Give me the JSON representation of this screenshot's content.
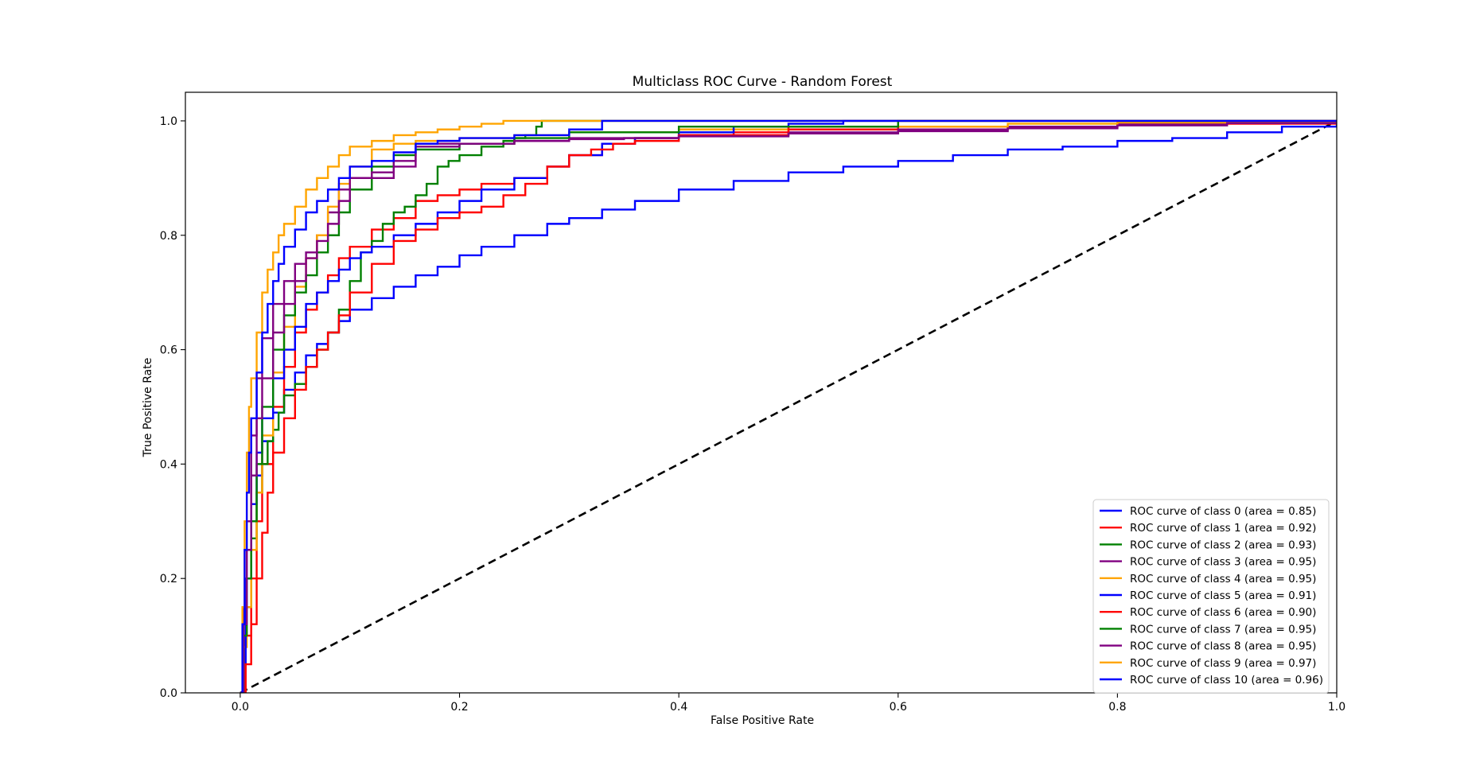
{
  "chart_data": {
    "type": "line",
    "title": "Multiclass ROC Curve - Random Forest",
    "xlabel": "False Positive Rate",
    "ylabel": "True Positive Rate",
    "xlim": [
      -0.05,
      1.0
    ],
    "ylim": [
      0.0,
      1.05
    ],
    "xticks": [
      "0.0",
      "0.2",
      "0.4",
      "0.6",
      "0.8",
      "1.0"
    ],
    "yticks": [
      "0.0",
      "0.2",
      "0.4",
      "0.6",
      "0.8",
      "1.0"
    ],
    "xtick_values": [
      0.0,
      0.2,
      0.4,
      0.6,
      0.8,
      1.0
    ],
    "ytick_values": [
      0.0,
      0.2,
      0.4,
      0.6,
      0.8,
      1.0
    ],
    "grid": false,
    "legend_position": "lower-right",
    "series": [
      {
        "name": "ROC curve of class 0 (area = 0.85)",
        "color": "#0000ff",
        "x": [
          0.0,
          0.003,
          0.006,
          0.01,
          0.015,
          0.02,
          0.03,
          0.04,
          0.05,
          0.06,
          0.07,
          0.08,
          0.09,
          0.1,
          0.12,
          0.14,
          0.16,
          0.18,
          0.2,
          0.22,
          0.25,
          0.28,
          0.3,
          0.33,
          0.36,
          0.4,
          0.45,
          0.5,
          0.55,
          0.6,
          0.65,
          0.7,
          0.75,
          0.8,
          0.85,
          0.9,
          0.95,
          1.0
        ],
        "y": [
          0.0,
          0.1,
          0.2,
          0.3,
          0.38,
          0.44,
          0.49,
          0.53,
          0.56,
          0.59,
          0.61,
          0.63,
          0.65,
          0.67,
          0.69,
          0.71,
          0.73,
          0.745,
          0.765,
          0.78,
          0.8,
          0.82,
          0.83,
          0.845,
          0.86,
          0.88,
          0.895,
          0.91,
          0.92,
          0.93,
          0.94,
          0.95,
          0.955,
          0.965,
          0.97,
          0.98,
          0.99,
          1.0
        ]
      },
      {
        "name": "ROC curve of class 1 (area = 0.92)",
        "color": "#ff0000",
        "x": [
          0.0,
          0.005,
          0.01,
          0.015,
          0.02,
          0.03,
          0.04,
          0.05,
          0.06,
          0.07,
          0.08,
          0.09,
          0.1,
          0.12,
          0.14,
          0.16,
          0.18,
          0.2,
          0.22,
          0.25,
          0.28,
          0.3,
          0.33,
          0.36,
          0.4,
          0.45,
          0.5,
          0.6,
          0.8,
          1.0
        ],
        "y": [
          0.0,
          0.1,
          0.2,
          0.3,
          0.4,
          0.5,
          0.57,
          0.63,
          0.67,
          0.7,
          0.73,
          0.76,
          0.78,
          0.81,
          0.83,
          0.86,
          0.87,
          0.88,
          0.89,
          0.9,
          0.92,
          0.94,
          0.96,
          0.97,
          0.975,
          0.98,
          0.985,
          0.99,
          0.995,
          1.0
        ]
      },
      {
        "name": "ROC curve of class 2 (area = 0.93)",
        "color": "#008000",
        "x": [
          0.0,
          0.005,
          0.01,
          0.015,
          0.02,
          0.025,
          0.03,
          0.035,
          0.04,
          0.05,
          0.06,
          0.07,
          0.08,
          0.09,
          0.1,
          0.11,
          0.12,
          0.13,
          0.14,
          0.15,
          0.16,
          0.17,
          0.18,
          0.19,
          0.2,
          0.22,
          0.24,
          0.25,
          0.26,
          0.27,
          0.275,
          0.3,
          0.4,
          0.6,
          1.0
        ],
        "y": [
          0.0,
          0.15,
          0.27,
          0.35,
          0.4,
          0.44,
          0.46,
          0.49,
          0.52,
          0.54,
          0.57,
          0.6,
          0.63,
          0.67,
          0.72,
          0.77,
          0.79,
          0.82,
          0.84,
          0.85,
          0.87,
          0.89,
          0.92,
          0.93,
          0.94,
          0.955,
          0.965,
          0.97,
          0.975,
          0.99,
          1.0,
          1.0,
          1.0,
          1.0,
          1.0
        ]
      },
      {
        "name": "ROC curve of class 3 (area = 0.95)",
        "color": "#800080",
        "x": [
          0.0,
          0.003,
          0.006,
          0.01,
          0.015,
          0.02,
          0.03,
          0.04,
          0.05,
          0.06,
          0.07,
          0.08,
          0.09,
          0.1,
          0.12,
          0.14,
          0.16,
          0.2,
          0.25,
          0.3,
          0.35,
          0.4,
          0.5,
          0.6,
          0.7,
          0.8,
          0.9,
          1.0
        ],
        "y": [
          0.0,
          0.15,
          0.3,
          0.45,
          0.55,
          0.62,
          0.68,
          0.72,
          0.75,
          0.77,
          0.8,
          0.84,
          0.88,
          0.9,
          0.9,
          0.92,
          0.96,
          0.96,
          0.965,
          0.97,
          0.97,
          0.975,
          0.98,
          0.985,
          0.99,
          0.995,
          0.998,
          1.0
        ]
      },
      {
        "name": "ROC curve of class 4 (area = 0.95)",
        "color": "#ffa500",
        "x": [
          0.0,
          0.003,
          0.006,
          0.01,
          0.015,
          0.02,
          0.03,
          0.04,
          0.05,
          0.06,
          0.07,
          0.08,
          0.09,
          0.1,
          0.12,
          0.14,
          0.16,
          0.2,
          0.25,
          0.3,
          0.35,
          0.4,
          0.5,
          0.6,
          0.7,
          0.8,
          0.9,
          1.0
        ],
        "y": [
          0.0,
          0.08,
          0.15,
          0.25,
          0.35,
          0.45,
          0.56,
          0.64,
          0.71,
          0.76,
          0.8,
          0.85,
          0.89,
          0.92,
          0.95,
          0.96,
          0.965,
          0.97,
          0.975,
          0.98,
          0.98,
          0.985,
          0.99,
          0.99,
          0.995,
          0.997,
          0.999,
          1.0
        ]
      },
      {
        "name": "ROC curve of class 5 (area = 0.91)",
        "color": "#0000ff",
        "x": [
          0.0,
          0.005,
          0.01,
          0.015,
          0.02,
          0.03,
          0.04,
          0.05,
          0.06,
          0.07,
          0.08,
          0.09,
          0.1,
          0.11,
          0.12,
          0.14,
          0.16,
          0.18,
          0.2,
          0.22,
          0.25,
          0.28,
          0.3,
          0.33,
          0.36,
          0.4,
          0.45,
          0.5,
          0.55,
          1.0
        ],
        "y": [
          0.0,
          0.2,
          0.33,
          0.42,
          0.48,
          0.55,
          0.6,
          0.64,
          0.68,
          0.7,
          0.72,
          0.74,
          0.76,
          0.77,
          0.78,
          0.8,
          0.82,
          0.84,
          0.86,
          0.88,
          0.9,
          0.92,
          0.94,
          0.96,
          0.97,
          0.98,
          0.99,
          0.995,
          1.0,
          1.0
        ]
      },
      {
        "name": "ROC curve of class 6 (area = 0.90)",
        "color": "#ff0000",
        "x": [
          0.0,
          0.005,
          0.01,
          0.015,
          0.02,
          0.025,
          0.03,
          0.04,
          0.05,
          0.06,
          0.07,
          0.08,
          0.09,
          0.1,
          0.12,
          0.14,
          0.16,
          0.18,
          0.2,
          0.22,
          0.24,
          0.26,
          0.28,
          0.3,
          0.32,
          0.34,
          0.36,
          0.4,
          0.5,
          0.6,
          1.0
        ],
        "y": [
          0.0,
          0.05,
          0.12,
          0.2,
          0.28,
          0.35,
          0.42,
          0.48,
          0.53,
          0.57,
          0.6,
          0.63,
          0.66,
          0.7,
          0.75,
          0.79,
          0.81,
          0.83,
          0.84,
          0.85,
          0.87,
          0.89,
          0.92,
          0.94,
          0.95,
          0.96,
          0.965,
          0.975,
          0.99,
          1.0,
          1.0
        ]
      },
      {
        "name": "ROC curve of class 7 (area = 0.95)",
        "color": "#008000",
        "x": [
          0.0,
          0.003,
          0.006,
          0.01,
          0.015,
          0.02,
          0.03,
          0.04,
          0.05,
          0.06,
          0.07,
          0.08,
          0.09,
          0.1,
          0.12,
          0.14,
          0.16,
          0.2,
          0.25,
          0.3,
          0.4,
          0.6,
          1.0
        ],
        "y": [
          0.0,
          0.1,
          0.2,
          0.3,
          0.4,
          0.5,
          0.6,
          0.66,
          0.7,
          0.73,
          0.77,
          0.8,
          0.84,
          0.88,
          0.92,
          0.94,
          0.95,
          0.96,
          0.97,
          0.98,
          0.99,
          1.0,
          1.0
        ]
      },
      {
        "name": "ROC curve of class 8 (area = 0.95)",
        "color": "#800080",
        "x": [
          0.0,
          0.003,
          0.006,
          0.01,
          0.015,
          0.02,
          0.03,
          0.04,
          0.05,
          0.06,
          0.07,
          0.08,
          0.09,
          0.1,
          0.12,
          0.14,
          0.16,
          0.2,
          0.25,
          0.3,
          0.35,
          0.4,
          0.5,
          0.6,
          0.7,
          0.8,
          0.9,
          1.0
        ],
        "y": [
          0.0,
          0.12,
          0.25,
          0.38,
          0.48,
          0.55,
          0.63,
          0.68,
          0.72,
          0.76,
          0.79,
          0.82,
          0.86,
          0.9,
          0.91,
          0.93,
          0.955,
          0.96,
          0.965,
          0.968,
          0.97,
          0.973,
          0.978,
          0.982,
          0.987,
          0.992,
          0.996,
          1.0
        ]
      },
      {
        "name": "ROC curve of class 9 (area = 0.97)",
        "color": "#ffa500",
        "x": [
          0.0,
          0.002,
          0.004,
          0.006,
          0.008,
          0.01,
          0.015,
          0.02,
          0.025,
          0.03,
          0.035,
          0.04,
          0.05,
          0.06,
          0.07,
          0.08,
          0.09,
          0.1,
          0.12,
          0.14,
          0.16,
          0.18,
          0.2,
          0.22,
          0.24,
          0.28,
          0.33,
          0.4,
          0.6,
          1.0
        ],
        "y": [
          0.0,
          0.15,
          0.3,
          0.42,
          0.5,
          0.55,
          0.63,
          0.7,
          0.74,
          0.77,
          0.8,
          0.82,
          0.85,
          0.88,
          0.9,
          0.92,
          0.94,
          0.955,
          0.965,
          0.975,
          0.98,
          0.985,
          0.99,
          0.995,
          1.0,
          1.0,
          1.0,
          1.0,
          1.0,
          1.0
        ]
      },
      {
        "name": "ROC curve of class 10 (area = 0.96)",
        "color": "#0000ff",
        "x": [
          0.0,
          0.002,
          0.004,
          0.006,
          0.008,
          0.01,
          0.015,
          0.02,
          0.025,
          0.03,
          0.035,
          0.04,
          0.05,
          0.06,
          0.07,
          0.08,
          0.09,
          0.1,
          0.12,
          0.14,
          0.16,
          0.18,
          0.2,
          0.25,
          0.3,
          0.33,
          0.4,
          0.6,
          1.0
        ],
        "y": [
          0.0,
          0.12,
          0.25,
          0.35,
          0.42,
          0.48,
          0.56,
          0.63,
          0.68,
          0.72,
          0.75,
          0.78,
          0.81,
          0.84,
          0.86,
          0.88,
          0.9,
          0.92,
          0.93,
          0.945,
          0.96,
          0.965,
          0.97,
          0.975,
          0.985,
          1.0,
          1.0,
          1.0,
          1.0
        ]
      }
    ],
    "reference_line": {
      "x": [
        0.0,
        1.0
      ],
      "y": [
        0.0,
        1.0
      ],
      "color": "#000000",
      "style": "dashed"
    }
  }
}
